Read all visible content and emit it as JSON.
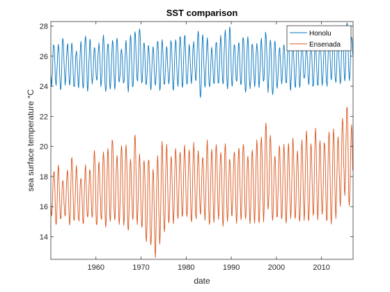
{
  "chart_data": {
    "type": "line",
    "title": "SST comparison",
    "xlabel": "date",
    "ylabel": "sea surface temperature °C",
    "xlim": [
      1950,
      2017
    ],
    "ylim": [
      12.5,
      28.3
    ],
    "x_ticks": [
      1960,
      1970,
      1980,
      1990,
      2000,
      2010
    ],
    "y_ticks": [
      14,
      16,
      18,
      20,
      22,
      24,
      26,
      28
    ],
    "x_tick_labels": [
      "1960",
      "1970",
      "1980",
      "1990",
      "2000",
      "2010"
    ],
    "y_tick_labels": [
      "14",
      "16",
      "18",
      "20",
      "22",
      "24",
      "26",
      "28"
    ],
    "grid": false,
    "legend_position": "top-right",
    "x_step_years": 1,
    "series": [
      {
        "name": "Honolu",
        "color": "#0072BD",
        "x_start": 1950,
        "annual_min": [
          24.0,
          24.1,
          23.9,
          24.2,
          24.0,
          23.8,
          24.1,
          24.0,
          23.9,
          24.1,
          24.2,
          24.0,
          23.7,
          24.0,
          23.8,
          24.1,
          24.0,
          23.8,
          24.0,
          24.2,
          24.1,
          23.9,
          24.0,
          24.2,
          23.8,
          23.9,
          24.0,
          23.8,
          24.1,
          24.0,
          24.0,
          24.1,
          24.3,
          23.3,
          24.1,
          23.9,
          24.0,
          24.0,
          24.3,
          23.9,
          24.0,
          24.1,
          23.9,
          23.8,
          24.0,
          24.2,
          23.9,
          24.1,
          23.8,
          23.5,
          24.0,
          24.1,
          24.0,
          23.9,
          24.0,
          24.1,
          24.3,
          24.0,
          23.9,
          24.1,
          24.2,
          24.0,
          24.3,
          24.1,
          24.2,
          24.5,
          24.4
        ],
        "annual_max": [
          26.9,
          26.6,
          27.1,
          26.8,
          27.0,
          26.5,
          26.8,
          27.2,
          27.0,
          26.7,
          26.9,
          27.3,
          26.8,
          27.0,
          27.4,
          26.6,
          26.9,
          27.2,
          27.5,
          28.0,
          27.0,
          26.8,
          26.5,
          26.9,
          27.1,
          26.7,
          27.0,
          26.9,
          27.2,
          27.4,
          26.8,
          27.0,
          27.6,
          27.3,
          27.0,
          26.6,
          27.1,
          27.2,
          27.5,
          27.8,
          26.9,
          27.0,
          27.3,
          27.1,
          26.7,
          26.9,
          27.2,
          27.6,
          27.0,
          26.8,
          26.6,
          27.0,
          27.1,
          26.9,
          27.2,
          27.0,
          26.8,
          27.0,
          26.9,
          27.1,
          27.0,
          27.3,
          27.5,
          27.2,
          27.6,
          28.2,
          27.5
        ]
      },
      {
        "name": "Ensenada",
        "color": "#D95319",
        "x_start": 1950,
        "annual_min": [
          15.5,
          14.6,
          15.0,
          15.3,
          14.8,
          15.1,
          15.0,
          14.7,
          15.2,
          15.3,
          14.8,
          15.1,
          14.5,
          14.9,
          15.2,
          15.0,
          14.8,
          14.2,
          14.9,
          15.0,
          14.7,
          13.8,
          13.3,
          12.6,
          13.6,
          14.4,
          15.0,
          14.8,
          15.1,
          15.2,
          15.4,
          15.0,
          15.1,
          15.3,
          15.0,
          14.9,
          15.1,
          15.3,
          14.6,
          15.0,
          15.4,
          15.1,
          15.2,
          15.0,
          14.8,
          15.1,
          15.0,
          15.2,
          15.6,
          15.0,
          15.1,
          15.3,
          15.0,
          15.2,
          15.0,
          14.9,
          15.3,
          15.1,
          15.2,
          15.0,
          15.3,
          15.1,
          15.0,
          15.4,
          16.0,
          16.7,
          16.1
        ],
        "annual_max": [
          18.4,
          18.8,
          17.9,
          18.3,
          19.2,
          18.6,
          18.1,
          18.8,
          18.4,
          19.5,
          18.9,
          19.8,
          20.0,
          20.6,
          19.2,
          19.9,
          20.2,
          19.4,
          20.8,
          19.3,
          19.0,
          19.3,
          18.7,
          19.5,
          20.2,
          19.9,
          19.3,
          20.0,
          19.8,
          20.0,
          19.6,
          20.1,
          19.8,
          19.5,
          20.2,
          19.6,
          20.0,
          19.8,
          20.4,
          19.3,
          19.6,
          19.8,
          20.2,
          19.5,
          19.9,
          20.2,
          20.4,
          21.6,
          20.8,
          19.6,
          20.0,
          19.9,
          20.1,
          20.6,
          19.8,
          20.3,
          20.8,
          20.1,
          21.3,
          20.5,
          20.4,
          20.8,
          21.0,
          20.7,
          22.1,
          22.8,
          21.2
        ]
      }
    ]
  }
}
